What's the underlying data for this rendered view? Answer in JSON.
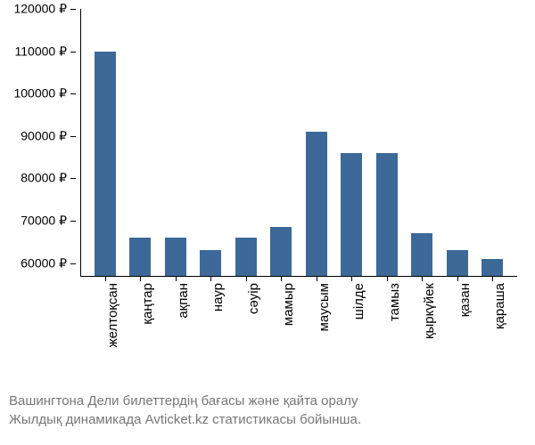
{
  "chart": {
    "type": "bar",
    "categories": [
      "желтоқсан",
      "қаңтар",
      "ақпан",
      "наур",
      "сәуір",
      "мамыр",
      "маусым",
      "шілде",
      "тамыз",
      "қыркүйек",
      "қазан",
      "қараша"
    ],
    "values": [
      110000,
      66000,
      66000,
      63000,
      66000,
      68500,
      91000,
      86000,
      86000,
      67000,
      63000,
      61000
    ],
    "bar_color": "#3d6998",
    "background_color": "#ffffff",
    "ylim_min": 57000,
    "ylim_max": 120000,
    "yticks": [
      60000,
      70000,
      80000,
      90000,
      100000,
      110000,
      120000
    ],
    "ytick_labels": [
      "60000 ₽",
      "70000 ₽",
      "80000 ₽",
      "90000 ₽",
      "100000 ₽",
      "110000 ₽",
      "120000 ₽"
    ],
    "label_fontsize": 14,
    "xlabel_fontsize": 15
  },
  "caption": {
    "line1": "Вашингтона Дели билеттердің бағасы және қайта оралу",
    "line2": "Жылдық динамикада Avticket.kz статистикасы бойынша.",
    "color": "#777777",
    "fontsize": 15
  }
}
